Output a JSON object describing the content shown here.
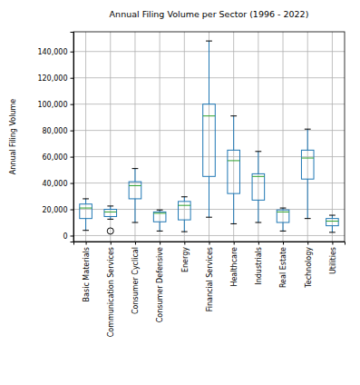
{
  "chart_data": {
    "type": "box",
    "title": "Annual Filing Volume per Sector (1996 - 2022)",
    "y_label": "Annual Filing Volume",
    "categories": [
      "Basic Materials",
      "Communication Services",
      "Consumer Cyclical",
      "Consumer Defensive",
      "Energy",
      "Financial Services",
      "Healthcare",
      "Industrials",
      "Real Estate",
      "Technology",
      "Utilities"
    ],
    "whisker_low": [
      4000,
      12500,
      10000,
      3500,
      3000,
      14000,
      9000,
      10000,
      3500,
      13000,
      2500
    ],
    "q1": [
      13000,
      14500,
      28000,
      10500,
      12000,
      45000,
      32000,
      27000,
      10000,
      43000,
      7500
    ],
    "median": [
      21000,
      18000,
      38000,
      17000,
      23000,
      91000,
      57000,
      45000,
      18000,
      59000,
      11000
    ],
    "q3": [
      24000,
      20000,
      41000,
      18000,
      26000,
      100000,
      65000,
      47000,
      19500,
      65000,
      13000
    ],
    "whisker_high": [
      28000,
      22500,
      51000,
      19500,
      29500,
      148000,
      91000,
      64000,
      21000,
      81000,
      15500
    ],
    "outliers": [
      [],
      [
        3500
      ],
      [],
      [],
      [],
      [],
      [],
      [],
      [],
      [],
      []
    ],
    "color": "#1f77b4",
    "ylim": [
      -4500,
      155000
    ],
    "yticks": [
      0,
      {
        "value": 20000,
        "label": "20,000"
      },
      {
        "value": 40000,
        "label": "40,000"
      },
      {
        "value": 60000,
        "label": "60,000"
      },
      {
        "value": 80000,
        "label": "80,000"
      },
      {
        "value": 100000,
        "label": "100,000"
      },
      {
        "value": 120000,
        "label": "120,000"
      },
      {
        "value": 140000,
        "label": "140,000"
      }
    ],
    "grid": true
  }
}
